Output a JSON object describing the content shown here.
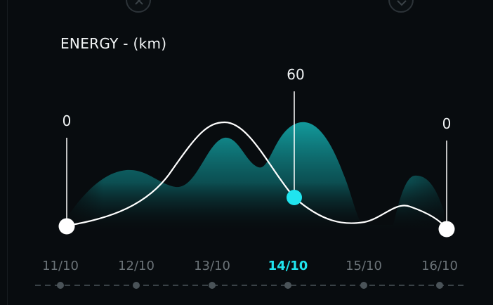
{
  "widget": {
    "title": "ENERGY - (km)",
    "colors": {
      "background": "#080c0f",
      "accent": "#20e4ee",
      "area": "#0f8d90",
      "line": "#ffffff",
      "muted_text": "#6a7277"
    },
    "top_controls": [
      {
        "icon": "close-icon"
      },
      {
        "icon": "chevron-down-icon"
      }
    ]
  },
  "chart_data": {
    "type": "area",
    "title": "ENERGY - (km)",
    "xlabel": "",
    "ylabel": "",
    "categories": [
      "11/10",
      "12/10",
      "13/10",
      "14/10",
      "15/10",
      "16/10"
    ],
    "active_category": "14/10",
    "grid": false,
    "series": [
      {
        "style": "smooth-line",
        "points": [
          {
            "category": "11/10",
            "value": 0,
            "label": "0"
          },
          {
            "category": "14/10",
            "value": 60,
            "label": "60",
            "highlighted": true
          },
          {
            "category": "16/10",
            "value": 0,
            "label": "0"
          }
        ]
      }
    ]
  }
}
